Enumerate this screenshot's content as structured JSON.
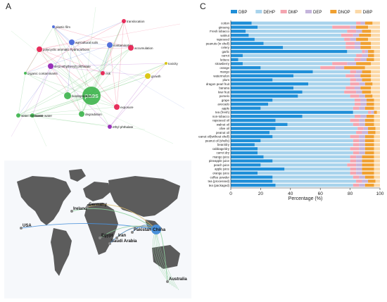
{
  "panels": {
    "a_letter": "A",
    "b_letter": "B",
    "c_letter": "C"
  },
  "network": {
    "nodes": [
      {
        "label": "paes",
        "color": "#3cb44b"
      },
      {
        "label": "polycyclic aromatic hydrocarbons",
        "color": "#e6194b"
      },
      {
        "label": "agricultural soils",
        "color": "#4363d8"
      },
      {
        "label": "di-(2-ethylhexyl) phthalate",
        "color": "#911eb4"
      },
      {
        "label": "biodegradation",
        "color": "#3cb44b"
      },
      {
        "label": "degradation",
        "color": "#3cb44b"
      },
      {
        "label": "waste water",
        "color": "#3cb44b"
      },
      {
        "label": "water treatment",
        "color": "#3cb44b"
      },
      {
        "label": "exposure",
        "color": "#e6194b"
      },
      {
        "label": "ethyl phthalate",
        "color": "#911eb4"
      },
      {
        "label": "contamination",
        "color": "#4363d8"
      },
      {
        "label": "accumulation",
        "color": "#e6194b"
      },
      {
        "label": "growth",
        "color": "#d8c300"
      },
      {
        "label": "translocation",
        "color": "#e6194b"
      },
      {
        "label": "organic contaminants",
        "color": "#3cb44b"
      },
      {
        "label": "toxicity",
        "color": "#d8c300"
      },
      {
        "label": "plastic film",
        "color": "#4363d8"
      },
      {
        "label": "risk",
        "color": "#e6194b"
      }
    ]
  },
  "map": {
    "hub": "China",
    "countries": [
      "USA",
      "Ireland",
      "Germany",
      "Pakistan",
      "Egypt",
      "Iran",
      "Saudi Arabia",
      "Australia"
    ],
    "hub_color": "#4a90d9",
    "link_colors": [
      "#4a90d9",
      "#8fd19e",
      "#e0c070"
    ]
  },
  "chart_data": {
    "type": "bar",
    "orientation": "horizontal",
    "stacked": true,
    "normalized": true,
    "title": "",
    "xlabel": "Percentage (%)",
    "ylabel": "",
    "xlim": [
      0,
      100
    ],
    "xticks": [
      0,
      20,
      40,
      60,
      80,
      100
    ],
    "legend_position": "top",
    "categories": [
      "cotton",
      "ginseng",
      "Fresh tobacco",
      "walnut",
      "rapeseed",
      "peanuts (in shell)",
      "celery",
      "garlic",
      "carrot",
      "lettuce",
      "strawberry",
      "orange",
      "mango",
      "watermelon",
      "plum",
      "dragon pearl fruit",
      "banana",
      "kiwi fruit",
      "pomelo",
      "grape",
      "avocado",
      "apple",
      "tea (fresh)",
      "non-tobacco",
      "rapeseed oil",
      "walnut oil",
      "olive oil",
      "peanut oil",
      "peanut oil(without shell)",
      "peanut oil (shells)",
      "bean/dry",
      "cabbage/dry",
      "carrot dry",
      "mango juice",
      "pineapple juice",
      "peach juice",
      "apple juice",
      "orange juice",
      "coffee powder",
      "tea (processed)",
      "tea (packaged)"
    ],
    "series": [
      {
        "name": "DBP",
        "color": "#1f8fd8",
        "values": [
          14,
          18,
          10,
          12,
          16,
          22,
          35,
          78,
          8,
          5,
          8,
          20,
          55,
          42,
          28,
          52,
          42,
          48,
          45,
          28,
          25,
          20,
          82,
          48,
          30,
          38,
          30,
          26,
          28,
          20,
          16,
          18,
          18,
          22,
          28,
          20,
          36,
          18,
          28,
          28,
          30
        ]
      },
      {
        "name": "DEHP",
        "color": "#a8d3ec",
        "values": [
          70,
          50,
          68,
          62,
          60,
          55,
          42,
          10,
          76,
          78,
          60,
          40,
          25,
          35,
          52,
          28,
          35,
          28,
          35,
          55,
          58,
          62,
          10,
          35,
          50,
          44,
          55,
          58,
          52,
          62,
          66,
          62,
          64,
          58,
          52,
          58,
          44,
          62,
          54,
          56,
          52
        ]
      },
      {
        "name": "DMP",
        "color": "#f4a5b0",
        "values": [
          3,
          12,
          6,
          8,
          4,
          6,
          6,
          2,
          4,
          4,
          10,
          10,
          4,
          6,
          4,
          6,
          6,
          8,
          6,
          4,
          4,
          4,
          2,
          4,
          6,
          4,
          4,
          4,
          6,
          4,
          4,
          6,
          4,
          4,
          4,
          6,
          4,
          4,
          4,
          4,
          4
        ]
      },
      {
        "name": "DEP",
        "color": "#c5b5dc",
        "values": [
          3,
          4,
          4,
          4,
          4,
          4,
          4,
          2,
          4,
          4,
          6,
          6,
          4,
          4,
          4,
          4,
          4,
          4,
          4,
          4,
          4,
          4,
          2,
          4,
          4,
          4,
          3,
          4,
          4,
          4,
          4,
          4,
          4,
          4,
          4,
          4,
          4,
          4,
          4,
          4,
          4
        ]
      },
      {
        "name": "DNOP",
        "color": "#f0a030",
        "values": [
          5,
          8,
          6,
          8,
          8,
          7,
          7,
          4,
          4,
          5,
          10,
          14,
          6,
          7,
          6,
          5,
          7,
          6,
          5,
          5,
          5,
          6,
          2,
          5,
          6,
          6,
          5,
          5,
          6,
          6,
          6,
          6,
          6,
          8,
          8,
          8,
          8,
          8,
          6,
          5,
          6
        ]
      },
      {
        "name": "DiBP",
        "color": "#fbd9a8",
        "values": [
          5,
          8,
          6,
          6,
          8,
          6,
          6,
          4,
          4,
          4,
          6,
          10,
          6,
          6,
          6,
          5,
          6,
          6,
          5,
          4,
          4,
          4,
          2,
          4,
          4,
          4,
          3,
          3,
          4,
          4,
          4,
          4,
          4,
          4,
          4,
          4,
          4,
          4,
          4,
          3,
          4
        ]
      }
    ]
  }
}
